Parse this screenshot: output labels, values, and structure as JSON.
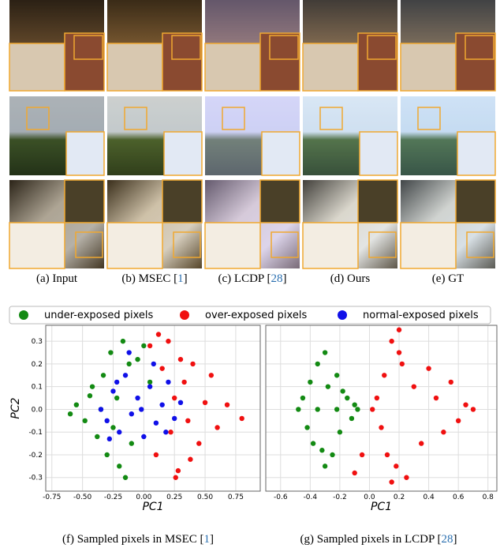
{
  "figure": {
    "captions": [
      {
        "text": "(a) Input"
      },
      {
        "prefix": "(b) MSEC [",
        "ref": "1",
        "suffix": "]"
      },
      {
        "prefix": "(c) LCDP [",
        "ref": "28",
        "suffix": "]"
      },
      {
        "text": "(d) Ours"
      },
      {
        "text": "(e) GT"
      }
    ],
    "subcaptions": [
      {
        "prefix": "(f)    Sampled pixels in MSEC [",
        "ref": "1",
        "suffix": "]"
      },
      {
        "prefix": "(g) Sampled pixels in LCDP [",
        "ref": "28",
        "suffix": "]"
      }
    ]
  },
  "chart_data": [
    {
      "type": "scatter",
      "xlabel": "PC1",
      "ylabel": "PC2",
      "xlim": [
        -0.8,
        0.95
      ],
      "ylim": [
        -0.36,
        0.37
      ],
      "xticks": [
        -0.75,
        {
          "value": -0.5,
          "label": "-0.50"
        },
        -0.25,
        {
          "value": 0,
          "label": "0.00"
        },
        0.25,
        {
          "value": 0.5,
          "label": "0.50"
        },
        0.75
      ],
      "yticks": [
        -0.3,
        -0.2,
        -0.1,
        {
          "value": 0,
          "label": "0.0"
        },
        0.1,
        0.2,
        0.3
      ],
      "grid": true,
      "series": [
        {
          "name": "under-exposed pixels",
          "color": "#138a13",
          "x": [
            -0.55,
            -0.48,
            -0.42,
            -0.38,
            -0.33,
            -0.3,
            -0.27,
            -0.22,
            -0.2,
            -0.17,
            -0.12,
            -0.1,
            -0.05,
            0.0,
            0.05,
            -0.35,
            -0.25,
            -0.15,
            -0.44,
            -0.6
          ],
          "values": [
            0.02,
            -0.05,
            0.1,
            -0.12,
            0.15,
            -0.2,
            0.25,
            0.05,
            -0.25,
            0.3,
            0.2,
            -0.15,
            0.22,
            0.28,
            0.12,
            0.0,
            -0.08,
            -0.3,
            0.06,
            -0.02
          ]
        },
        {
          "name": "over-exposed pixels",
          "color": "#f01010",
          "x": [
            0.05,
            0.1,
            0.15,
            0.2,
            0.22,
            0.25,
            0.28,
            0.3,
            0.33,
            0.36,
            0.4,
            0.45,
            0.5,
            0.55,
            0.6,
            0.68,
            0.8,
            0.12,
            0.38,
            0.26
          ],
          "values": [
            0.28,
            -0.2,
            0.18,
            0.3,
            -0.1,
            0.05,
            -0.27,
            0.22,
            0.12,
            -0.05,
            0.2,
            -0.15,
            0.03,
            0.15,
            -0.08,
            0.02,
            -0.04,
            0.33,
            -0.22,
            -0.3
          ]
        },
        {
          "name": "normal-exposed pixels",
          "color": "#1010e8",
          "x": [
            -0.35,
            -0.3,
            -0.25,
            -0.2,
            -0.15,
            -0.1,
            -0.05,
            0.0,
            0.05,
            0.1,
            0.15,
            0.2,
            0.25,
            0.3,
            -0.28,
            -0.12,
            0.08,
            -0.02,
            0.18,
            -0.22
          ],
          "values": [
            0.0,
            -0.05,
            0.08,
            -0.1,
            0.15,
            -0.02,
            0.05,
            -0.12,
            0.1,
            -0.06,
            0.02,
            0.12,
            -0.04,
            0.03,
            -0.13,
            0.25,
            0.2,
            0.0,
            -0.1,
            0.12
          ]
        }
      ]
    },
    {
      "type": "scatter",
      "xlabel": "PC1",
      "xlim": [
        -0.7,
        0.86
      ],
      "ylim": [
        -0.36,
        0.37
      ],
      "xticks": [
        -0.6,
        -0.4,
        -0.2,
        {
          "value": 0,
          "label": "0.0"
        },
        0.2,
        0.4,
        0.6,
        0.8
      ],
      "yticks": [
        -0.3,
        -0.2,
        -0.1,
        0,
        0.1,
        0.2,
        0.3
      ],
      "grid": true,
      "series": [
        {
          "color": "#138a13",
          "x": [
            -0.48,
            -0.45,
            -0.42,
            -0.4,
            -0.38,
            -0.35,
            -0.32,
            -0.3,
            -0.28,
            -0.25,
            -0.22,
            -0.2,
            -0.18,
            -0.15,
            -0.12,
            -0.1,
            -0.08,
            -0.3,
            -0.35,
            -0.22
          ],
          "values": [
            0.0,
            0.05,
            -0.08,
            0.12,
            -0.15,
            0.2,
            -0.18,
            0.25,
            0.1,
            -0.2,
            0.15,
            -0.1,
            0.08,
            0.05,
            -0.04,
            0.02,
            0.0,
            -0.25,
            0.0,
            0.0
          ]
        },
        {
          "color": "#f01010",
          "x": [
            0.02,
            0.05,
            0.08,
            0.1,
            0.12,
            0.15,
            0.18,
            0.2,
            0.22,
            0.25,
            0.3,
            0.35,
            0.4,
            0.45,
            0.5,
            0.55,
            0.6,
            0.65,
            0.7,
            0.15,
            0.2,
            -0.05,
            -0.1
          ],
          "values": [
            0.0,
            0.05,
            -0.08,
            0.15,
            -0.2,
            0.3,
            -0.25,
            0.35,
            0.2,
            -0.3,
            0.1,
            -0.15,
            0.18,
            0.05,
            -0.1,
            0.12,
            -0.05,
            0.02,
            0.0,
            -0.32,
            0.25,
            -0.2,
            -0.28
          ]
        }
      ]
    }
  ]
}
